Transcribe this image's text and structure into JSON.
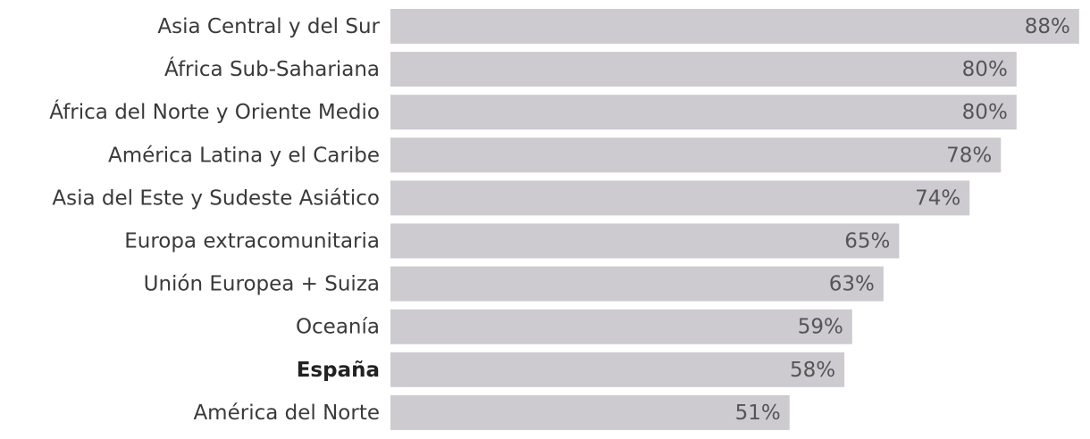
{
  "chart_data": {
    "type": "bar",
    "orientation": "horizontal",
    "categories": [
      "Asia Central y del Sur",
      "África Sub-Sahariana",
      "África del Norte y Oriente Medio",
      "América Latina y el Caribe",
      "Asia del Este y Sudeste Asiático",
      "Europa extracomunitaria",
      "Unión Europea + Suiza",
      "Oceanía",
      "España",
      "América del Norte"
    ],
    "values": [
      88,
      80,
      80,
      78,
      74,
      65,
      63,
      59,
      58,
      51
    ],
    "value_labels": [
      "88%",
      "80%",
      "80%",
      "78%",
      "74%",
      "65%",
      "63%",
      "59%",
      "58%",
      "51%"
    ],
    "color": "#cdcbd0",
    "highlight": "España"
  }
}
